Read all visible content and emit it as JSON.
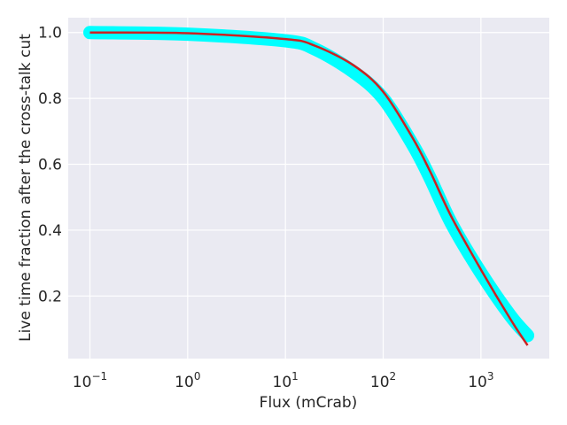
{
  "chart_data": {
    "type": "line",
    "title": "",
    "xlabel": "Flux (mCrab)",
    "ylabel": "Live time fraction after the cross-talk cut",
    "xscale": "log",
    "xlim": [
      0.06,
      5000
    ],
    "ylim": [
      0.01,
      1.045
    ],
    "grid": true,
    "background": "#eaeaf2",
    "x_ticks": [
      {
        "base": "10",
        "exp": "−1",
        "value": 0.1
      },
      {
        "base": "10",
        "exp": "0",
        "value": 1
      },
      {
        "base": "10",
        "exp": "1",
        "value": 10
      },
      {
        "base": "10",
        "exp": "2",
        "value": 100
      },
      {
        "base": "10",
        "exp": "3",
        "value": 1000
      }
    ],
    "y_ticks": [
      {
        "label": "0.2",
        "value": 0.2
      },
      {
        "label": "0.4",
        "value": 0.4
      },
      {
        "label": "0.6",
        "value": 0.6
      },
      {
        "label": "0.8",
        "value": 0.8
      },
      {
        "label": "1.0",
        "value": 1.0
      }
    ],
    "series": [
      {
        "color": "#00ffff",
        "style": "band",
        "x": [
          0.1,
          1,
          10,
          20,
          50,
          100,
          200,
          300,
          500,
          1000,
          2000,
          3000
        ],
        "y": [
          1.0,
          0.995,
          0.975,
          0.95,
          0.88,
          0.8,
          0.66,
          0.56,
          0.42,
          0.27,
          0.14,
          0.08
        ]
      },
      {
        "color": "#cc2222",
        "style": "line",
        "x": [
          0.1,
          1,
          10,
          20,
          50,
          100,
          200,
          300,
          500,
          1000,
          2000,
          3000
        ],
        "y": [
          1.0,
          0.998,
          0.98,
          0.96,
          0.9,
          0.82,
          0.68,
          0.58,
          0.44,
          0.28,
          0.13,
          0.05
        ]
      }
    ]
  }
}
